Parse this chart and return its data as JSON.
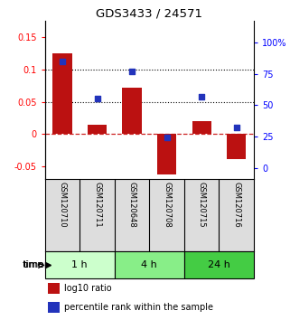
{
  "title": "GDS3433 / 24571",
  "samples": [
    "GSM120710",
    "GSM120711",
    "GSM120648",
    "GSM120708",
    "GSM120715",
    "GSM120716"
  ],
  "log10_ratio": [
    0.125,
    0.015,
    0.072,
    -0.063,
    0.02,
    -0.038
  ],
  "percentile_rank": [
    85,
    55,
    77,
    24,
    57,
    32
  ],
  "groups": [
    {
      "label": "1 h",
      "indices": [
        0,
        1
      ],
      "color": "#ccffcc"
    },
    {
      "label": "4 h",
      "indices": [
        2,
        3
      ],
      "color": "#88ee88"
    },
    {
      "label": "24 h",
      "indices": [
        4,
        5
      ],
      "color": "#44cc44"
    }
  ],
  "bar_color": "#bb1111",
  "dot_color": "#2233bb",
  "left_ylim": [
    -0.07,
    0.175
  ],
  "left_yticks": [
    -0.05,
    0.0,
    0.05,
    0.1,
    0.15
  ],
  "left_yticklabels": [
    "-0.05",
    "0",
    "0.05",
    "0.1",
    "0.15"
  ],
  "right_ylim": [
    -9.33,
    117.33
  ],
  "right_yticks": [
    0,
    25,
    50,
    75,
    100
  ],
  "right_yticklabels": [
    "0",
    "25",
    "50",
    "75",
    "100%"
  ],
  "hlines": [
    0.05,
    0.1
  ],
  "zero_line_color": "#cc2222",
  "dot_size": 22,
  "bar_width": 0.55,
  "legend_items": [
    "log10 ratio",
    "percentile rank within the sample"
  ],
  "legend_colors": [
    "#bb1111",
    "#2233bb"
  ],
  "time_label": "time"
}
